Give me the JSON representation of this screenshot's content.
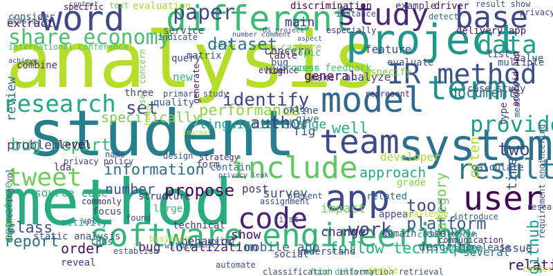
{
  "words": [
    {
      "text": "student",
      "color": "#277f8e"
    },
    {
      "text": "analysis",
      "color": "#b5de2b"
    },
    {
      "text": "method",
      "color": "#27ad81"
    },
    {
      "text": "software engineering",
      "color": "#35b779"
    },
    {
      "text": "system",
      "color": "#2c728e"
    },
    {
      "text": "project",
      "color": "#1f988b"
    },
    {
      "text": "word",
      "color": "#3e4a89"
    },
    {
      "text": "different",
      "color": "#3bbb75"
    },
    {
      "text": "model",
      "color": "#31688e"
    },
    {
      "text": "study",
      "color": "#482878"
    },
    {
      "text": "base",
      "color": "#3f4788"
    },
    {
      "text": "app",
      "color": "#3e4a89"
    },
    {
      "text": "user",
      "color": "#440154"
    },
    {
      "text": "term",
      "color": "#21918c"
    },
    {
      "text": "IR method",
      "color": "#3b528b"
    },
    {
      "text": "team",
      "color": "#3f4889"
    },
    {
      "text": "result",
      "color": "#29798e"
    },
    {
      "text": "include",
      "color": "#5ec962"
    },
    {
      "text": "code",
      "color": "#482475"
    },
    {
      "text": "tweet",
      "color": "#6ece58"
    },
    {
      "text": "research",
      "color": "#22a884"
    },
    {
      "text": "data",
      "color": "#1fa187"
    },
    {
      "text": "share economy",
      "color": "#46c06f"
    },
    {
      "text": "paper",
      "color": "#3f4788"
    },
    {
      "text": "identify",
      "color": "#414487"
    },
    {
      "text": "provide",
      "color": "#1f9e89"
    },
    {
      "text": "dataset",
      "color": "#2a788e"
    },
    {
      "text": "author",
      "color": "#443a83"
    },
    {
      "text": "bug report",
      "color": "#3dbc74"
    },
    {
      "text": "information",
      "color": "#2d708e"
    },
    {
      "text": "performance",
      "color": "#8fd744"
    },
    {
      "text": "propose",
      "color": "#450559"
    },
    {
      "text": "platform",
      "color": "#365d8d"
    },
    {
      "text": "work",
      "color": "#433e85"
    },
    {
      "text": "report",
      "color": "#2e6e8e"
    },
    {
      "text": "class",
      "color": "#38588c"
    },
    {
      "text": "tool",
      "color": "#3e4c8a"
    },
    {
      "text": "follow technique",
      "color": "#26ad81"
    },
    {
      "text": "bug localization",
      "color": "#481f70"
    },
    {
      "text": "mobile app",
      "color": "#30698e"
    },
    {
      "text": "order",
      "color": "#471063"
    },
    {
      "text": "relation",
      "color": "#440154"
    },
    {
      "text": "github",
      "color": "#1e9b8a"
    },
    {
      "text": "often",
      "color": "#b5de2b"
    },
    {
      "text": "approach",
      "color": "#25ab82"
    },
    {
      "text": "survey",
      "color": "#3b528b"
    },
    {
      "text": "set",
      "color": "#3e4a89"
    },
    {
      "text": "specifically",
      "color": "#7ad151"
    },
    {
      "text": "linguistic change",
      "color": "#1fa187"
    },
    {
      "text": "number",
      "color": "#3b528b"
    },
    {
      "text": "time",
      "color": "#38588c"
    },
    {
      "text": "two",
      "color": "#3e4989"
    },
    {
      "text": "document",
      "color": "#2a788e"
    },
    {
      "text": "category",
      "color": "#6ece58"
    },
    {
      "text": "show",
      "color": "#471164"
    },
    {
      "text": "change",
      "color": "#482677"
    },
    {
      "text": "impact",
      "color": "#75d054"
    },
    {
      "text": "post",
      "color": "#46337f"
    },
    {
      "text": "main",
      "color": "#472d7b"
    },
    {
      "text": "feature",
      "color": "#3f4788"
    },
    {
      "text": "general",
      "color": "#46085c"
    },
    {
      "text": "concern",
      "color": "#46327e"
    },
    {
      "text": "evaluate",
      "color": "#3b528b"
    },
    {
      "text": "process",
      "color": "#35b779"
    },
    {
      "text": "make",
      "color": "#482576"
    },
    {
      "text": "developer",
      "color": "#a8db34"
    },
    {
      "text": "well",
      "color": "#29af7f"
    },
    {
      "text": "quality",
      "color": "#365c8d"
    },
    {
      "text": "review",
      "color": "#2c728e"
    },
    {
      "text": "problem",
      "color": "#3f4788"
    },
    {
      "text": "level",
      "color": "#440154"
    },
    {
      "text": "source code",
      "color": "#29af7f"
    },
    {
      "text": "app store",
      "color": "#4ac16d"
    },
    {
      "text": "lda",
      "color": "#46307e"
    },
    {
      "text": "thus",
      "color": "#31688e"
    },
    {
      "text": "calculate",
      "color": "#3a548c"
    },
    {
      "text": "release",
      "color": "#39568c"
    },
    {
      "text": "issue",
      "color": "#3f4889"
    },
    {
      "text": "pr",
      "color": "#2e6e8e"
    },
    {
      "text": "several",
      "color": "#2a788e"
    },
    {
      "text": "grade",
      "color": "#84d44b"
    },
    {
      "text": "related",
      "color": "#2c738e"
    },
    {
      "text": "understand",
      "color": "#3e4c8a"
    },
    {
      "text": "exist",
      "color": "#2f6c8e"
    },
    {
      "text": "behavior",
      "color": "#472c7a"
    },
    {
      "text": "static analysis",
      "color": "#3d4e8a"
    },
    {
      "text": "activity",
      "color": "#1f978b"
    },
    {
      "text": "describe",
      "color": "#3b518b"
    },
    {
      "text": "average",
      "color": "#20a486"
    },
    {
      "text": "support",
      "color": "#52c569"
    },
    {
      "text": "reveal",
      "color": "#453781"
    },
    {
      "text": "analyze",
      "color": "#414487"
    },
    {
      "text": "matrix",
      "color": "#3b528b"
    },
    {
      "text": "extract",
      "color": "#46085c"
    },
    {
      "text": "consider",
      "color": "#3a548c"
    },
    {
      "text": "classify",
      "color": "#32658e"
    },
    {
      "text": "combine",
      "color": "#46327e"
    },
    {
      "text": "international conference",
      "color": "#44bf70"
    },
    {
      "text": "specific",
      "color": "#440154"
    },
    {
      "text": "text",
      "color": "#7ad151"
    },
    {
      "text": "evaluation",
      "color": "#a8db34"
    },
    {
      "text": "discrimination",
      "color": "#440154"
    },
    {
      "text": "example",
      "color": "#453781"
    },
    {
      "text": "driver",
      "color": "#471365"
    },
    {
      "text": "result show",
      "color": "#3b528b"
    },
    {
      "text": "privacy",
      "color": "#3f4889"
    },
    {
      "text": "detect",
      "color": "#2d708e"
    },
    {
      "text": "delivery app",
      "color": "#481769"
    },
    {
      "text": "list",
      "color": "#414487"
    },
    {
      "text": "value",
      "color": "#3b528b"
    },
    {
      "text": "multiple",
      "color": "#39568c"
    },
    {
      "text": "case study",
      "color": "#3e4a89"
    },
    {
      "text": "high",
      "color": "#46327e"
    },
    {
      "text": "bug",
      "color": "#3b528b"
    },
    {
      "text": "evidence",
      "color": "#482878"
    },
    {
      "text": "query",
      "color": "#3f4788"
    },
    {
      "text": "new",
      "color": "#35b779"
    },
    {
      "text": "generate",
      "color": "#470e61"
    },
    {
      "text": "service",
      "color": "#3e4a89"
    },
    {
      "text": "indicate",
      "color": "#3b528b"
    },
    {
      "text": "test",
      "color": "#2c728e"
    },
    {
      "text": "capture",
      "color": "#93d741"
    },
    {
      "text": "topic",
      "color": "#46c06f"
    },
    {
      "text": "table",
      "color": "#482475"
    },
    {
      "text": "user feedback",
      "color": "#52c569"
    },
    {
      "text": "specify",
      "color": "#7ad151"
    },
    {
      "text": "user concern",
      "color": "#6ece58"
    },
    {
      "text": "three",
      "color": "#414487"
    },
    {
      "text": "help",
      "color": "#b5de2b"
    },
    {
      "text": "primary study",
      "color": "#3b528b"
    },
    {
      "text": "represent",
      "color": "#46327e"
    },
    {
      "text": "android app",
      "color": "#440154"
    },
    {
      "text": "measure",
      "color": "#3b528b"
    },
    {
      "text": "type",
      "color": "#433e85"
    },
    {
      "text": "fig",
      "color": "#39568c"
    },
    {
      "text": "online",
      "color": "#3e4c8a"
    },
    {
      "text": "give",
      "color": "#2c728e"
    },
    {
      "text": "file",
      "color": "#3b528b"
    },
    {
      "text": "form",
      "color": "#433e85"
    },
    {
      "text": "contain",
      "color": "#2c728e"
    },
    {
      "text": "strategy",
      "color": "#482475"
    },
    {
      "text": "design",
      "color": "#3b528b"
    },
    {
      "text": "name",
      "color": "#3e4a89"
    },
    {
      "text": "structure",
      "color": "#482878"
    },
    {
      "text": "assignment",
      "color": "#3f4788"
    },
    {
      "text": "present",
      "color": "#39568c"
    },
    {
      "text": "first",
      "color": "#3b528b"
    },
    {
      "text": "appear",
      "color": "#3e4a89"
    },
    {
      "text": "domain size",
      "color": "#3b528b"
    },
    {
      "text": "challenge",
      "color": "#bddf26"
    },
    {
      "text": "large",
      "color": "#35b779"
    },
    {
      "text": "technical",
      "color": "#46327e"
    },
    {
      "text": "focus",
      "color": "#3e4c8a"
    },
    {
      "text": "vol",
      "color": "#3b528b"
    },
    {
      "text": "within",
      "color": "#2c728e"
    },
    {
      "text": "found",
      "color": "#3e4a89"
    },
    {
      "text": "commonly",
      "color": "#482475"
    },
    {
      "text": "establish",
      "color": "#3b528b"
    },
    {
      "text": "social",
      "color": "#3e4a89"
    },
    {
      "text": "introduce",
      "color": "#39568c"
    },
    {
      "text": "communication",
      "color": "#482878"
    },
    {
      "text": "code lexicon",
      "color": "#1f988b"
    },
    {
      "text": "business",
      "color": "#b5de2b"
    },
    {
      "text": "automate",
      "color": "#3b528b"
    },
    {
      "text": "classification",
      "color": "#3e4a89"
    },
    {
      "text": "food delivery",
      "color": "#46c06f"
    },
    {
      "text": "information retrieval",
      "color": "#3b528b"
    },
    {
      "text": "sample",
      "color": "#b5de2b"
    },
    {
      "text": "privacy policy",
      "color": "#433e85"
    },
    {
      "text": "engineering vol",
      "color": "#3b528b"
    },
    {
      "text": "research question",
      "color": "#3e4c8a"
    },
    {
      "text": "requirement engineering",
      "color": "#3b528b"
    },
    {
      "text": "conference software",
      "color": "#b5de2b"
    },
    {
      "text": "privacy leak",
      "color": "#3b528b"
    },
    {
      "text": "especially",
      "color": "#46327e"
    },
    {
      "text": "aspect",
      "color": "#39568c"
    },
    {
      "text": "instance",
      "color": "#3e4a89"
    },
    {
      "text": "context",
      "color": "#3b528b"
    },
    {
      "text": "achieve",
      "color": "#3e4a89"
    },
    {
      "text": "number comment",
      "color": "#3b528b"
    },
    {
      "text": "OS project",
      "color": "#3b528b"
    },
    {
      "text": "commit",
      "color": "#3b528b"
    },
    {
      "text": "journal",
      "color": "#b5de2b"
    },
    {
      "text": "relationship",
      "color": "#3b528b"
    }
  ]
}
